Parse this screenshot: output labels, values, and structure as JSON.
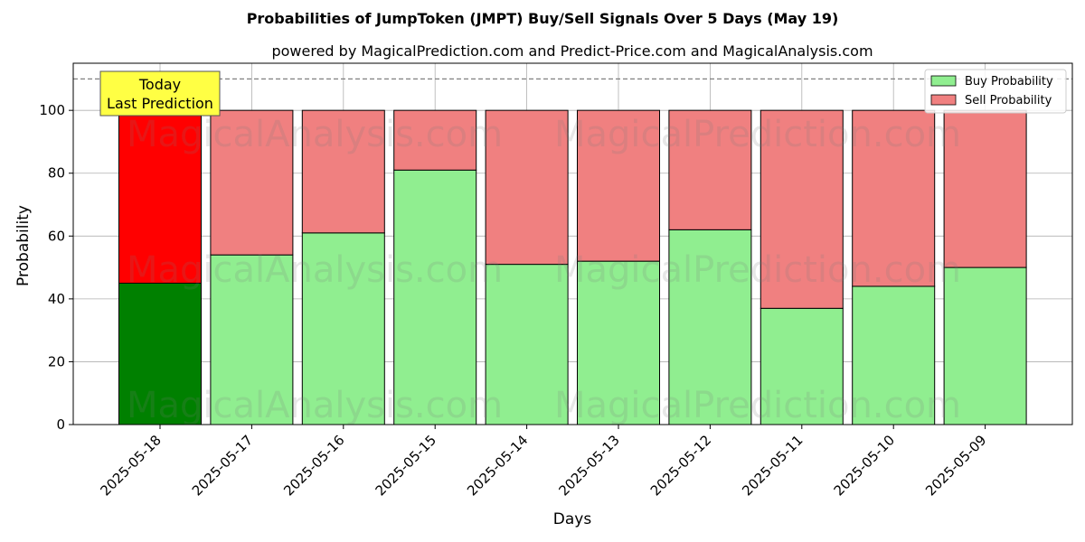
{
  "chart_data": {
    "type": "bar",
    "title": "Probabilities of JumpToken (JMPT) Buy/Sell Signals Over 5 Days (May 19)",
    "subtitle": "powered by MagicalPrediction.com and Predict-Price.com and MagicalAnalysis.com",
    "xlabel": "Days",
    "ylabel": "Probability",
    "ylim": [
      0,
      115
    ],
    "yticks": [
      "0",
      "20",
      "40",
      "60",
      "80",
      "100"
    ],
    "reference_line": 110,
    "grid": true,
    "stacked": true,
    "legend_position": "top-right",
    "categories": [
      "2025-05-18",
      "2025-05-17",
      "2025-05-16",
      "2025-05-15",
      "2025-05-14",
      "2025-05-13",
      "2025-05-12",
      "2025-05-11",
      "2025-05-10",
      "2025-05-09"
    ],
    "series": [
      {
        "name": "Buy Probability",
        "color": "#90ee90",
        "highlight_color": "#008000",
        "values": [
          45,
          54,
          61,
          81,
          51,
          52,
          62,
          37,
          44,
          50
        ]
      },
      {
        "name": "Sell Probability",
        "color": "#f08080",
        "highlight_color": "#ff0000",
        "values": [
          55,
          46,
          39,
          19,
          49,
          48,
          38,
          63,
          56,
          50
        ]
      }
    ],
    "annotation": {
      "lines": [
        "Today",
        "Last Prediction"
      ],
      "category_index": 0,
      "background": "#ffff44"
    },
    "watermarks": [
      "MagicalAnalysis.com",
      "MagicalPrediction.com"
    ]
  }
}
